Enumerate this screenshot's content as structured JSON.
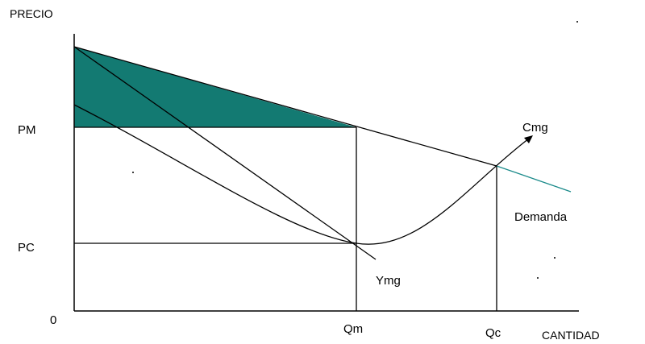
{
  "axes": {
    "y_title": "PRECIO",
    "x_title": "CANTIDAD",
    "origin": "0"
  },
  "price_labels": {
    "pm": "PM",
    "pc": "PC"
  },
  "quantity_labels": {
    "qm": "Qm",
    "qc": "Qc"
  },
  "curve_labels": {
    "cmg": "Cmg",
    "demand": "Demanda",
    "ymg": "Ymg"
  },
  "colors": {
    "shaded_area": "#137a72",
    "demand_extension": "#1a8a8a",
    "lines": "#000000",
    "background": "#ffffff"
  }
}
